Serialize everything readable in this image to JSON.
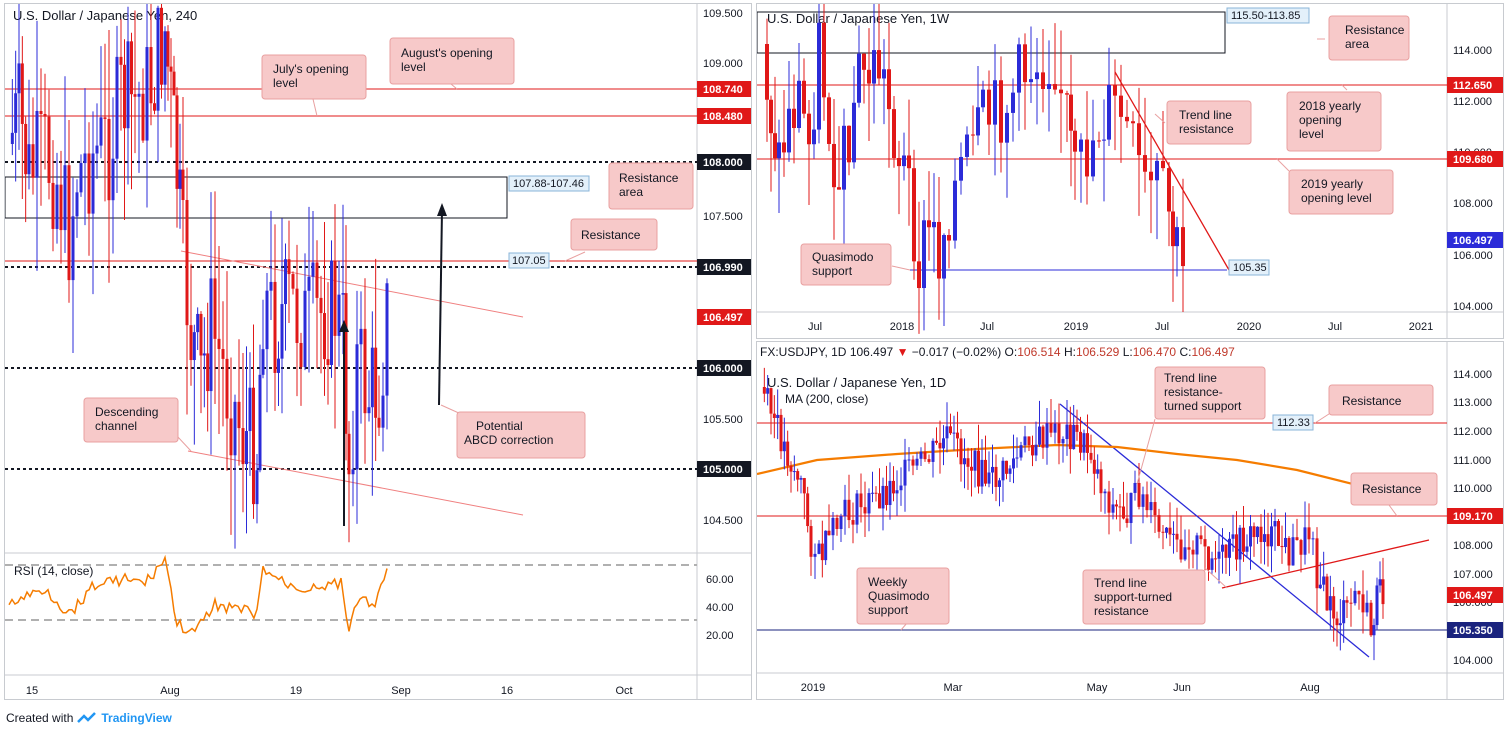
{
  "colors": {
    "up": "#2b2bd8",
    "down": "#e01818",
    "red_line": "#e01818",
    "label_bg": "#f7c9c9",
    "label_border": "#e8a0a0",
    "blue_line": "#2b2bd8",
    "orange": "#f57c00",
    "rsi": "#f57c00"
  },
  "footer": {
    "created_with": "Created with",
    "brand": "TradingView"
  },
  "left_chart": {
    "title": "U.S. Dollar / Japanese Yen, 240",
    "x_ticks": [
      "15",
      "Aug",
      "19",
      "Sep",
      "16",
      "Oct"
    ],
    "y_ticks": [
      "109.500",
      "109.000",
      "108.500",
      "108.000",
      "107.500",
      "107.000",
      "106.500",
      "106.000",
      "105.500",
      "105.000",
      "104.500"
    ],
    "price_tags": [
      {
        "text": "108.740",
        "style": "red"
      },
      {
        "text": "108.480",
        "style": "red"
      },
      {
        "text": "108.000",
        "style": "black"
      },
      {
        "text": "106.990",
        "style": "black"
      },
      {
        "text": "106.497",
        "style": "red"
      },
      {
        "text": "106.000",
        "style": "black"
      },
      {
        "text": "105.000",
        "style": "black"
      }
    ],
    "zone_label": "107.88-107.46",
    "line_label": "107.05",
    "annotations": {
      "july_open": "July's opening level",
      "aug_open": "August's opening level",
      "resistance_area": "Resistance area",
      "resistance": "Resistance",
      "descending_channel": "Descending channel",
      "abcd": "Potential ABCD correction"
    },
    "rsi": {
      "title": "RSI (14, close)",
      "ticks": [
        "60.00",
        "40.00",
        "20.00"
      ]
    }
  },
  "weekly_chart": {
    "title": "U.S. Dollar / Japanese Yen, 1W",
    "x_ticks": [
      "Jul",
      "2018",
      "Jul",
      "2019",
      "Jul",
      "2020",
      "Jul",
      "2021"
    ],
    "y_ticks": [
      "114.000",
      "112.000",
      "110.000",
      "108.000",
      "106.000",
      "104.000"
    ],
    "price_tags": [
      {
        "text": "112.650",
        "style": "red"
      },
      {
        "text": "109.680",
        "style": "red"
      },
      {
        "text": "106.497",
        "style": "blue"
      }
    ],
    "zone_label": "115.50-113.85",
    "line_label": "105.35",
    "annotations": {
      "resistance_area": "Resistance area",
      "trend_res": "Trend line resistance",
      "open_2018": "2018 yearly opening level",
      "open_2019": "2019 yearly opening level",
      "qm_support": "Quasimodo support"
    }
  },
  "daily_chart": {
    "header": {
      "symbol": "FX:USDJPY, 1D",
      "price": "106.497",
      "change": "−0.017 (−0.02%)",
      "o_label": "O:",
      "o": "106.514",
      "h_label": "H:",
      "h": "106.529",
      "l_label": "L:",
      "l": "106.470",
      "c_label": "C:",
      "c": "106.497"
    },
    "title": "U.S. Dollar / Japanese Yen, 1D",
    "ma_label": "MA (200, close)",
    "x_ticks": [
      "2019",
      "Mar",
      "May",
      "Jun",
      "Aug"
    ],
    "y_ticks": [
      "114.000",
      "113.000",
      "112.000",
      "111.000",
      "110.000",
      "109.000",
      "108.000",
      "107.000",
      "106.000",
      "105.000",
      "104.000"
    ],
    "price_tags": [
      {
        "text": "109.170",
        "style": "red"
      },
      {
        "text": "106.497",
        "style": "red"
      },
      {
        "text": "105.350",
        "style": "navy"
      }
    ],
    "line_label": "112.33",
    "annotations": {
      "trend_rts": "Trend line resistance-turned support",
      "resistance1": "Resistance",
      "resistance2": "Resistance",
      "weekly_qm": "Weekly Quasimodo support",
      "trend_str": "Trend line support-turned resistance"
    }
  }
}
